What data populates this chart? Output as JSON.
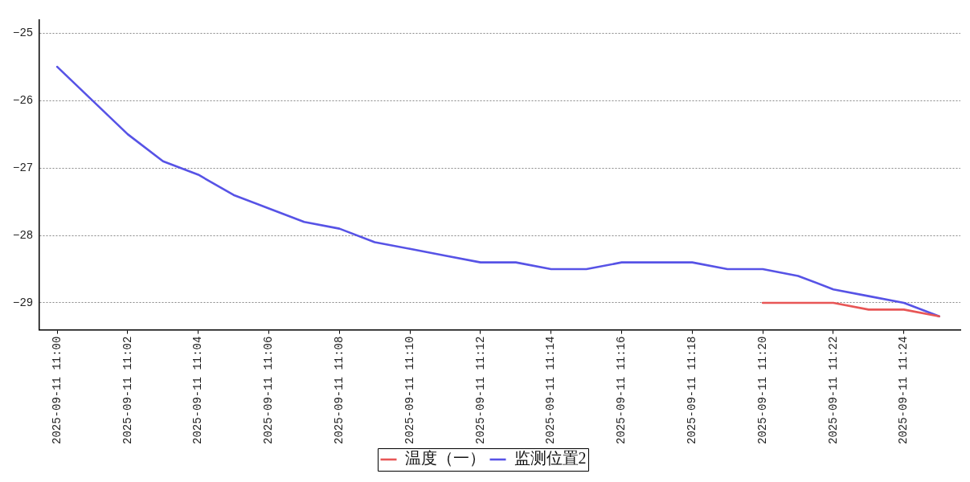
{
  "chart_data": {
    "type": "line",
    "legend": "bottom",
    "grid": "y",
    "marker": "none",
    "line_style": "solid",
    "xlim": [
      "2025-09-11T10:59:30",
      "2025-09-11T11:25:36"
    ],
    "xticks": [
      {
        "value": "2025-09-11T11:00",
        "label": "2025-09-11 11:00"
      },
      {
        "value": "2025-09-11T11:02",
        "label": "2025-09-11 11:02"
      },
      {
        "value": "2025-09-11T11:04",
        "label": "2025-09-11 11:04"
      },
      {
        "value": "2025-09-11T11:06",
        "label": "2025-09-11 11:06"
      },
      {
        "value": "2025-09-11T11:08",
        "label": "2025-09-11 11:08"
      },
      {
        "value": "2025-09-11T11:10",
        "label": "2025-09-11 11:10"
      },
      {
        "value": "2025-09-11T11:12",
        "label": "2025-09-11 11:12"
      },
      {
        "value": "2025-09-11T11:14",
        "label": "2025-09-11 11:14"
      },
      {
        "value": "2025-09-11T11:16",
        "label": "2025-09-11 11:16"
      },
      {
        "value": "2025-09-11T11:18",
        "label": "2025-09-11 11:18"
      },
      {
        "value": "2025-09-11T11:20",
        "label": "2025-09-11 11:20"
      },
      {
        "value": "2025-09-11T11:22",
        "label": "2025-09-11 11:22"
      },
      {
        "value": "2025-09-11T11:24",
        "label": "2025-09-11 11:24"
      }
    ],
    "ylim": [
      -29.4,
      -24.8
    ],
    "yticks": [
      {
        "value": -29,
        "label": "−29"
      },
      {
        "value": -28,
        "label": "−28"
      },
      {
        "value": -27,
        "label": "−27"
      },
      {
        "value": -26,
        "label": "−26"
      },
      {
        "value": -25,
        "label": "−25"
      }
    ],
    "series": [
      {
        "name": "温度（一）",
        "color": "#e85656",
        "x": [
          "2025-09-11T11:20",
          "2025-09-11T11:21",
          "2025-09-11T11:22",
          "2025-09-11T11:23",
          "2025-09-11T11:24",
          "2025-09-11T11:25"
        ],
        "values": [
          -29.0,
          -29.0,
          -29.0,
          -29.1,
          -29.1,
          -29.2
        ]
      },
      {
        "name": "监测位置2",
        "color": "#5753e6",
        "x": [
          "2025-09-11T11:00",
          "2025-09-11T11:01",
          "2025-09-11T11:02",
          "2025-09-11T11:03",
          "2025-09-11T11:04",
          "2025-09-11T11:05",
          "2025-09-11T11:06",
          "2025-09-11T11:07",
          "2025-09-11T11:08",
          "2025-09-11T11:09",
          "2025-09-11T11:10",
          "2025-09-11T11:11",
          "2025-09-11T11:12",
          "2025-09-11T11:13",
          "2025-09-11T11:14",
          "2025-09-11T11:15",
          "2025-09-11T11:16",
          "2025-09-11T11:17",
          "2025-09-11T11:18",
          "2025-09-11T11:19",
          "2025-09-11T11:20",
          "2025-09-11T11:21",
          "2025-09-11T11:22",
          "2025-09-11T11:23",
          "2025-09-11T11:24",
          "2025-09-11T11:25"
        ],
        "values": [
          -25.5,
          -26.0,
          -26.5,
          -26.9,
          -27.1,
          -27.4,
          -27.6,
          -27.8,
          -27.9,
          -28.1,
          -28.2,
          -28.3,
          -28.4,
          -28.4,
          -28.5,
          -28.5,
          -28.4,
          -28.4,
          -28.4,
          -28.5,
          -28.5,
          -28.6,
          -28.8,
          -28.9,
          -29.0,
          -29.2
        ]
      }
    ]
  }
}
